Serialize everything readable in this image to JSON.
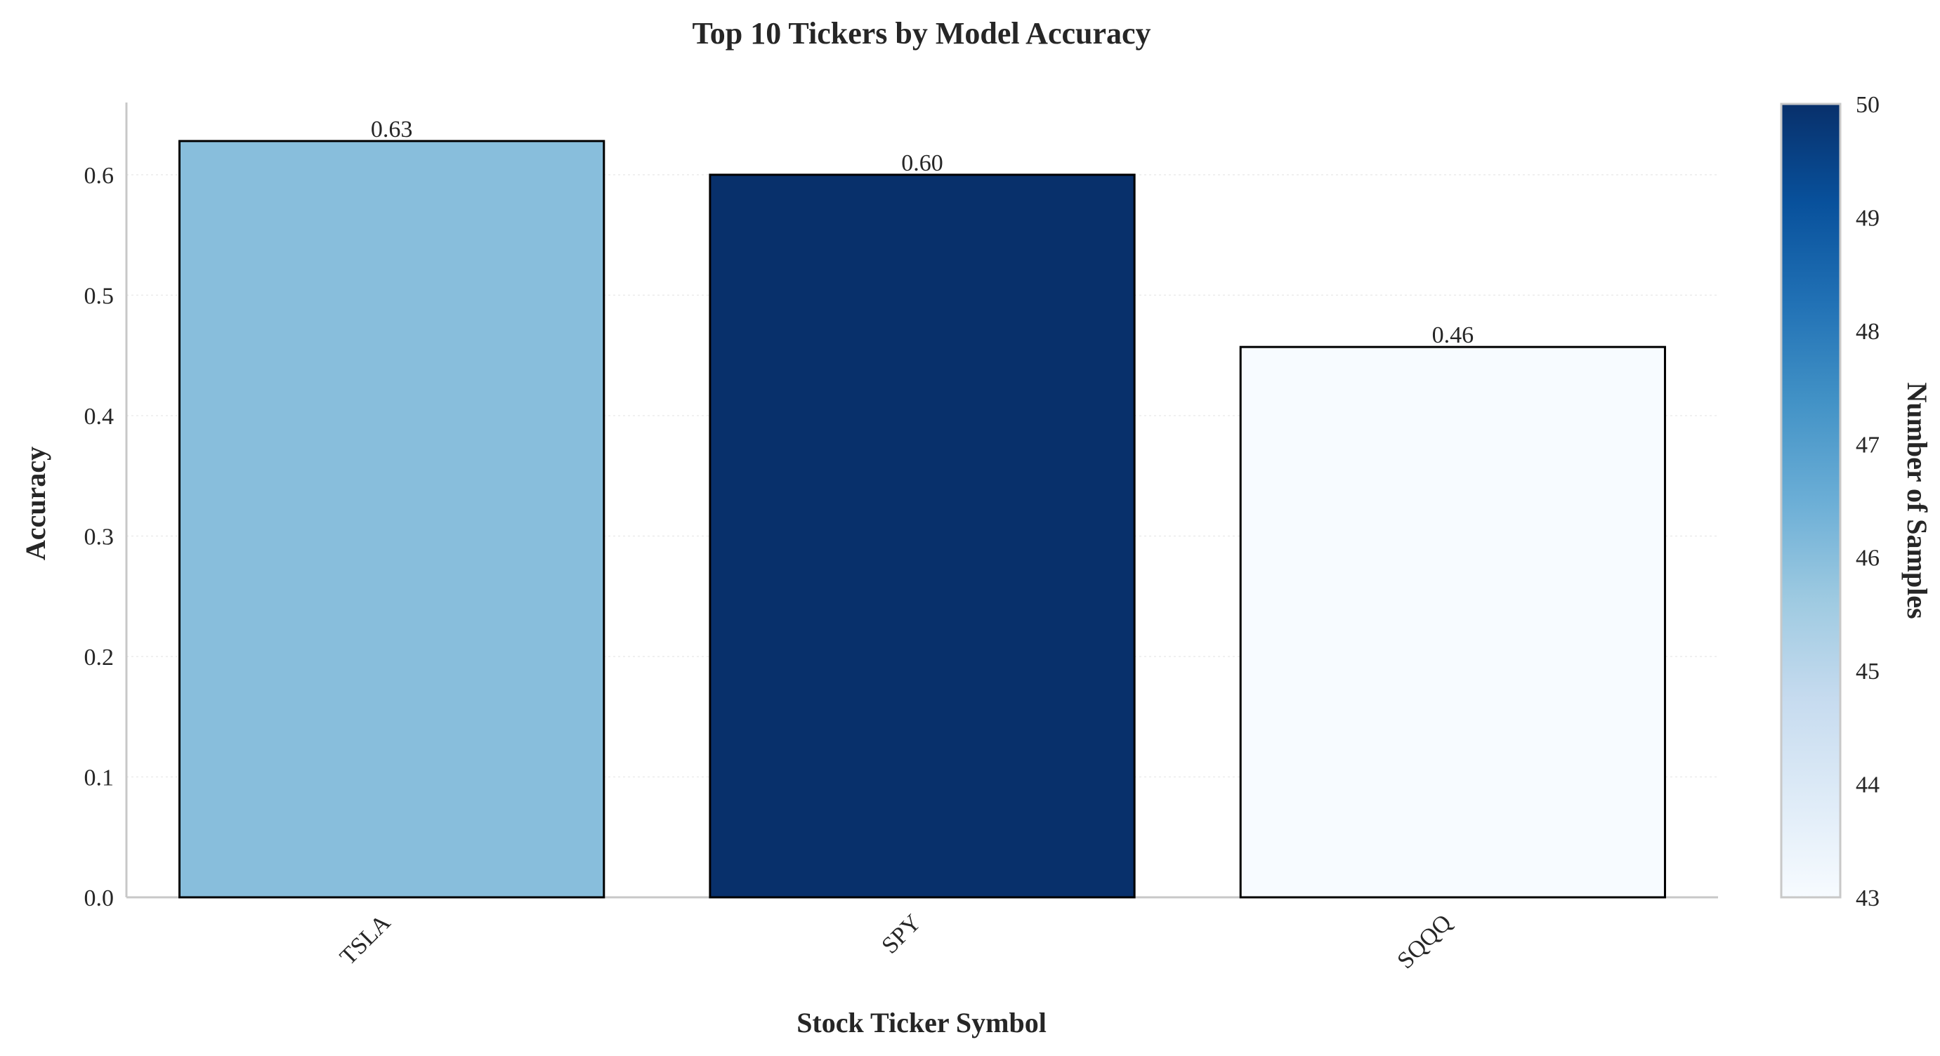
{
  "chart_data": {
    "type": "bar",
    "title": "Top 10 Tickers by Model Accuracy",
    "xlabel": "Stock Ticker Symbol",
    "ylabel": "Accuracy",
    "categories": [
      "TSLA",
      "SPY",
      "SQQQ"
    ],
    "values": [
      0.628,
      0.6,
      0.457
    ],
    "value_labels": [
      "0.63",
      "0.60",
      "0.46"
    ],
    "samples": [
      46,
      50,
      43
    ],
    "ylim": [
      0,
      0.66
    ],
    "yticks": [
      0.0,
      0.1,
      0.2,
      0.3,
      0.4,
      0.5,
      0.6
    ],
    "ytick_labels": [
      "0.0",
      "0.1",
      "0.2",
      "0.3",
      "0.4",
      "0.5",
      "0.6"
    ],
    "grid": true,
    "colorbar": {
      "label": "Number of Samples",
      "min": 43,
      "max": 50,
      "ticks": [
        43,
        44,
        45,
        46,
        47,
        48,
        49,
        50
      ],
      "tick_labels": [
        "43",
        "44",
        "45",
        "46",
        "47",
        "48",
        "49",
        "50"
      ],
      "colormap": [
        "#f7fbff",
        "#deebf7",
        "#c6dbef",
        "#9ecae1",
        "#6baed6",
        "#4292c6",
        "#2171b5",
        "#08519c",
        "#08306b"
      ]
    }
  }
}
